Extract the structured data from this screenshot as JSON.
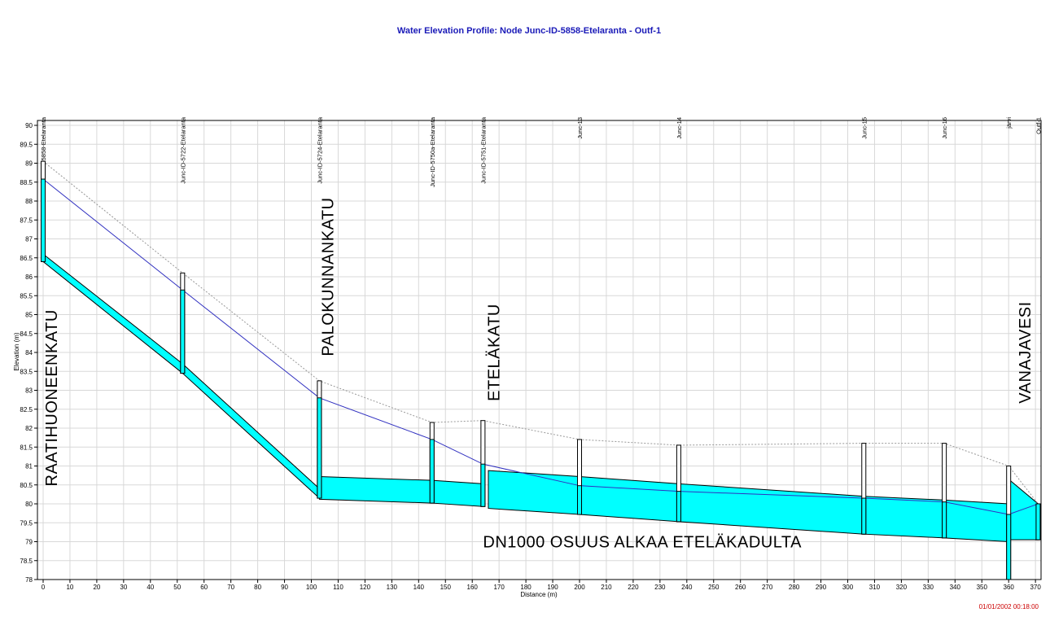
{
  "chart_data": {
    "type": "line",
    "title": "Water Elevation Profile:  Node Junc-ID-5858-Etelaranta - Outf-1",
    "xlabel": "Distance (m)",
    "ylabel": "Elevation (m)",
    "xlim": [
      0,
      370
    ],
    "ylim": [
      78,
      90
    ],
    "x_ticks": [
      0,
      10,
      20,
      30,
      40,
      50,
      60,
      70,
      80,
      90,
      100,
      110,
      120,
      130,
      140,
      150,
      160,
      170,
      180,
      190,
      200,
      210,
      220,
      230,
      240,
      250,
      260,
      270,
      280,
      290,
      300,
      310,
      320,
      330,
      340,
      350,
      360,
      370
    ],
    "y_ticks": [
      78,
      78.5,
      79,
      79.5,
      80,
      80.5,
      81,
      81.5,
      82,
      82.5,
      83,
      83.5,
      84,
      84.5,
      85,
      85.5,
      86,
      86.5,
      87,
      87.5,
      88,
      88.5,
      89,
      89.5,
      90
    ],
    "grid": true,
    "timestamp": "01/01/2002 00:18:00",
    "nodes": [
      {
        "name": "Junc-ID-5858-Etelaranta",
        "x": 0,
        "invert": 86.4,
        "rim": 89.05,
        "water": 88.58
      },
      {
        "name": "Junc-ID-5722-Etelaranta",
        "x": 52,
        "invert": 83.45,
        "rim": 86.1,
        "water": 85.65
      },
      {
        "name": "Junc-ID-5724-Etelaranta",
        "x": 103,
        "invert": 80.15,
        "rim": 83.25,
        "water": 82.8
      },
      {
        "name": "Junc-ID-5750a-Etelaranta",
        "x": 145,
        "invert": 80.02,
        "rim": 82.15,
        "water": 81.7
      },
      {
        "name": "Junc-ID-5751-Etelaranta",
        "x": 164,
        "invert": 79.93,
        "rim": 82.2,
        "water": 81.05
      },
      {
        "name": "Junc-13",
        "x": 200,
        "invert": 79.72,
        "rim": 81.7,
        "water": 80.48
      },
      {
        "name": "Junc-14",
        "x": 237,
        "invert": 79.53,
        "rim": 81.55,
        "water": 80.33
      },
      {
        "name": "Junc-15",
        "x": 306,
        "invert": 79.2,
        "rim": 81.6,
        "water": 80.15
      },
      {
        "name": "Junc-16",
        "x": 336,
        "invert": 79.1,
        "rim": 81.6,
        "water": 80.05
      },
      {
        "name": "järvi",
        "x": 360,
        "invert": 78,
        "rim": 81.0,
        "water": 79.72
      },
      {
        "name": "Outf-1",
        "x": 371,
        "invert": 79.05,
        "rim": 80.0,
        "water": 80.0
      }
    ],
    "conduits": [
      {
        "x": [
          0,
          52
        ],
        "bottom": [
          86.4,
          83.45
        ],
        "top": [
          86.6,
          83.7
        ]
      },
      {
        "x": [
          52,
          103
        ],
        "bottom": [
          83.45,
          80.15
        ],
        "top": [
          83.7,
          80.4
        ]
      },
      {
        "x": [
          103,
          145
        ],
        "bottom": [
          80.12,
          80.02
        ],
        "top": [
          80.72,
          80.62
        ]
      },
      {
        "x": [
          145,
          164
        ],
        "bottom": [
          80.02,
          79.93
        ],
        "top": [
          80.62,
          80.53
        ]
      },
      {
        "x": [
          166,
          200
        ],
        "bottom": [
          79.88,
          79.72
        ],
        "top": [
          80.88,
          80.72
        ]
      },
      {
        "x": [
          200,
          237
        ],
        "bottom": [
          79.72,
          79.53
        ],
        "top": [
          80.72,
          80.53
        ]
      },
      {
        "x": [
          237,
          306
        ],
        "bottom": [
          79.53,
          79.2
        ],
        "top": [
          80.53,
          80.2
        ]
      },
      {
        "x": [
          306,
          336
        ],
        "bottom": [
          79.2,
          79.1
        ],
        "top": [
          80.2,
          80.1
        ]
      },
      {
        "x": [
          336,
          360
        ],
        "bottom": [
          79.1,
          79.0
        ],
        "top": [
          80.1,
          80.0
        ]
      },
      {
        "x": [
          360,
          371
        ],
        "bottom": [
          79.05,
          79.05
        ],
        "top": [
          80.65,
          80.0
        ]
      }
    ],
    "annotations": [
      {
        "text": "RAATIHUONEENKATU",
        "x": 3,
        "y": 82.8,
        "rotate": true
      },
      {
        "text": "PALOKUNNANKATU",
        "x": 106,
        "y": 86,
        "rotate": true
      },
      {
        "text": "ETELÄKATU",
        "x": 168,
        "y": 84,
        "rotate": true
      },
      {
        "text": "VANAJAVESI",
        "x": 366,
        "y": 84,
        "rotate": true
      },
      {
        "text": "DN1000 OSUUS ALKAA ETELÄKADULTA",
        "x": 164,
        "y": 78.85,
        "rotate": false
      }
    ],
    "colors": {
      "water": "#00ffff",
      "hgl": "#3030c0",
      "title": "#1a1ab8",
      "timestamp": "#cc0000",
      "grid": "#d8d8d8",
      "rim_line": "#999999"
    }
  }
}
